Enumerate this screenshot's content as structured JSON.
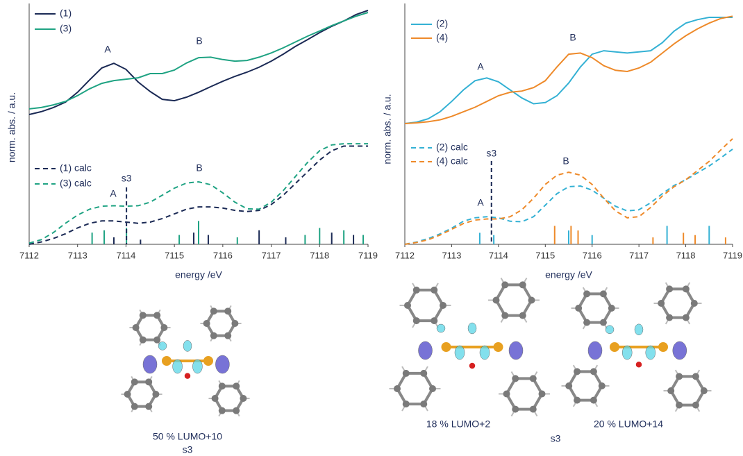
{
  "chart_data": [
    {
      "type": "line",
      "xlabel": "energy /eV",
      "ylabel": "norm. abs. / a.u.",
      "xlim": [
        7112,
        7119
      ],
      "ylim": [
        0,
        1
      ],
      "xticks": [
        7112,
        7113,
        7114,
        7115,
        7116,
        7117,
        7118,
        7119
      ],
      "x": [
        7112,
        7112.25,
        7112.5,
        7112.75,
        7113,
        7113.25,
        7113.5,
        7113.75,
        7114,
        7114.25,
        7114.5,
        7114.75,
        7115,
        7115.25,
        7115.5,
        7115.75,
        7116,
        7116.25,
        7116.5,
        7116.75,
        7117,
        7117.25,
        7117.5,
        7117.75,
        7118,
        7118.25,
        7118.5,
        7118.75,
        7119
      ],
      "series": [
        {
          "name": "(1)",
          "color": "#1b2a55",
          "dashed": false,
          "values": [
            0.555,
            0.567,
            0.585,
            0.608,
            0.65,
            0.703,
            0.754,
            0.774,
            0.748,
            0.694,
            0.653,
            0.62,
            0.614,
            0.629,
            0.65,
            0.674,
            0.697,
            0.718,
            0.736,
            0.757,
            0.783,
            0.813,
            0.846,
            0.875,
            0.905,
            0.932,
            0.955,
            0.982,
            1.0
          ]
        },
        {
          "name": "(3)",
          "color": "#1fa383",
          "dashed": false,
          "values": [
            0.579,
            0.585,
            0.596,
            0.611,
            0.636,
            0.665,
            0.688,
            0.7,
            0.706,
            0.712,
            0.73,
            0.73,
            0.745,
            0.775,
            0.798,
            0.8,
            0.79,
            0.783,
            0.786,
            0.8,
            0.818,
            0.84,
            0.865,
            0.89,
            0.912,
            0.935,
            0.955,
            0.975,
            0.991
          ]
        },
        {
          "name": "(1) calc",
          "color": "#1b2a55",
          "dashed": true,
          "values": [
            0.0,
            0.01,
            0.025,
            0.045,
            0.07,
            0.09,
            0.1,
            0.1,
            0.095,
            0.09,
            0.095,
            0.11,
            0.13,
            0.15,
            0.16,
            0.16,
            0.155,
            0.145,
            0.14,
            0.145,
            0.17,
            0.21,
            0.26,
            0.31,
            0.36,
            0.4,
            0.42,
            0.42,
            0.42
          ]
        },
        {
          "name": "(3) calc",
          "color": "#1fa383",
          "dashed": true,
          "values": [
            0.005,
            0.02,
            0.05,
            0.09,
            0.125,
            0.15,
            0.163,
            0.165,
            0.163,
            0.165,
            0.18,
            0.21,
            0.24,
            0.262,
            0.267,
            0.255,
            0.22,
            0.18,
            0.152,
            0.15,
            0.18,
            0.23,
            0.29,
            0.35,
            0.4,
            0.425,
            0.43,
            0.43,
            0.43
          ]
        }
      ],
      "sticks": [
        {
          "color": "#1b2a55",
          "x": [
            7113.75,
            7114.3,
            7115.4,
            7115.7,
            7116.75,
            7117.3,
            7118.25,
            7118.7
          ],
          "values": [
            0.03,
            0.02,
            0.05,
            0.04,
            0.06,
            0.03,
            0.05,
            0.04
          ]
        },
        {
          "color": "#1fa383",
          "x": [
            7113.3,
            7113.55,
            7114.01,
            7115.1,
            7115.5,
            7116.3,
            7117.7,
            7118.0,
            7118.5,
            7118.9
          ],
          "values": [
            0.05,
            0.06,
            0.07,
            0.04,
            0.1,
            0.03,
            0.04,
            0.07,
            0.06,
            0.04
          ]
        }
      ],
      "annotations": [
        "A",
        "B",
        "A",
        "B"
      ],
      "markers": [
        {
          "label": "s3",
          "x": 7114.01
        }
      ]
    },
    {
      "type": "line",
      "xlabel": "energy /eV",
      "ylabel": "norm. abs. / a.u.",
      "xlim": [
        7112,
        7119
      ],
      "ylim": [
        0,
        1
      ],
      "xticks": [
        7112,
        7113,
        7114,
        7115,
        7116,
        7117,
        7118,
        7119
      ],
      "x": [
        7112,
        7112.25,
        7112.5,
        7112.75,
        7113,
        7113.25,
        7113.5,
        7113.75,
        7114,
        7114.25,
        7114.5,
        7114.75,
        7115,
        7115.25,
        7115.5,
        7115.75,
        7116,
        7116.25,
        7116.5,
        7116.75,
        7117,
        7117.25,
        7117.5,
        7117.75,
        7118,
        7118.25,
        7118.5,
        7118.75,
        7119
      ],
      "series": [
        {
          "name": "(2)",
          "color": "#34b1d4",
          "dashed": false,
          "values": [
            0.524,
            0.53,
            0.545,
            0.575,
            0.62,
            0.67,
            0.71,
            0.722,
            0.705,
            0.67,
            0.635,
            0.61,
            0.615,
            0.645,
            0.7,
            0.77,
            0.825,
            0.84,
            0.835,
            0.83,
            0.835,
            0.84,
            0.875,
            0.925,
            0.96,
            0.975,
            0.985,
            0.985,
            0.985
          ]
        },
        {
          "name": "(4)",
          "color": "#ee8a2a",
          "dashed": false,
          "values": [
            0.524,
            0.527,
            0.532,
            0.54,
            0.555,
            0.575,
            0.595,
            0.62,
            0.645,
            0.66,
            0.665,
            0.68,
            0.71,
            0.77,
            0.825,
            0.83,
            0.81,
            0.775,
            0.755,
            0.75,
            0.765,
            0.79,
            0.83,
            0.87,
            0.905,
            0.935,
            0.96,
            0.98,
            0.99
          ]
        },
        {
          "name": "(2) calc",
          "color": "#34b1d4",
          "dashed": true,
          "values": [
            0.0,
            0.01,
            0.025,
            0.045,
            0.07,
            0.1,
            0.115,
            0.12,
            0.115,
            0.1,
            0.098,
            0.12,
            0.17,
            0.22,
            0.25,
            0.253,
            0.235,
            0.2,
            0.165,
            0.145,
            0.15,
            0.18,
            0.22,
            0.255,
            0.28,
            0.31,
            0.34,
            0.375,
            0.413
          ]
        },
        {
          "name": "(4) calc",
          "color": "#ee8a2a",
          "dashed": true,
          "values": [
            0.0,
            0.008,
            0.02,
            0.04,
            0.065,
            0.09,
            0.105,
            0.11,
            0.11,
            0.12,
            0.15,
            0.2,
            0.26,
            0.3,
            0.313,
            0.3,
            0.26,
            0.2,
            0.145,
            0.115,
            0.12,
            0.16,
            0.21,
            0.25,
            0.28,
            0.32,
            0.36,
            0.41,
            0.458
          ]
        }
      ],
      "sticks": [
        {
          "color": "#34b1d4",
          "x": [
            7113.6,
            7113.9,
            7115.5,
            7116.0,
            7117.6,
            7118.5
          ],
          "values": [
            0.05,
            0.04,
            0.06,
            0.04,
            0.08,
            0.08
          ]
        },
        {
          "color": "#ee8a2a",
          "x": [
            7115.2,
            7115.55,
            7115.7,
            7117.3,
            7117.95,
            7118.2,
            7118.85
          ],
          "values": [
            0.08,
            0.08,
            0.06,
            0.03,
            0.05,
            0.04,
            0.03
          ]
        }
      ],
      "annotations": [
        "A",
        "B",
        "A",
        "B"
      ],
      "markers": [
        {
          "label": "s3",
          "x": 7113.85
        }
      ]
    }
  ],
  "figure_labels": [
    "50 % LUMO+10",
    "s3",
    "18 %  LUMO+2",
    "20 % LUMO+14",
    "s3"
  ]
}
